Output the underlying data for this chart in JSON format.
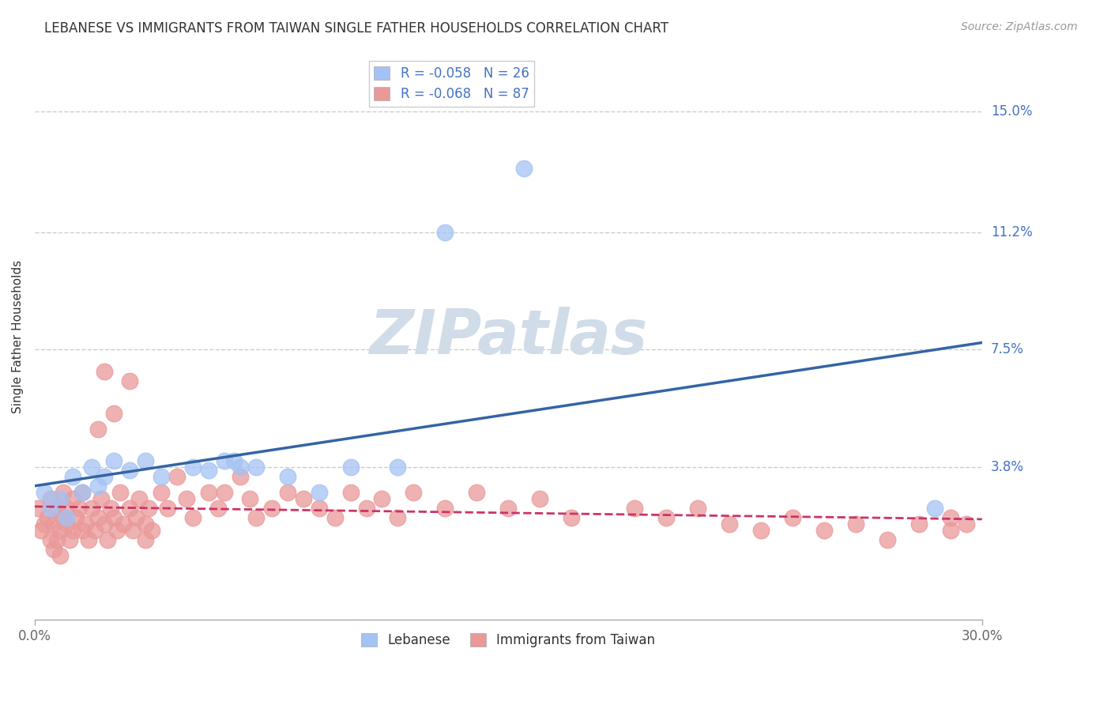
{
  "title": "LEBANESE VS IMMIGRANTS FROM TAIWAN SINGLE FATHER HOUSEHOLDS CORRELATION CHART",
  "source": "Source: ZipAtlas.com",
  "ylabel": "Single Father Households",
  "ytick_labels": [
    "15.0%",
    "11.2%",
    "7.5%",
    "3.8%"
  ],
  "ytick_values": [
    0.15,
    0.112,
    0.075,
    0.038
  ],
  "xlim": [
    0.0,
    0.3
  ],
  "ylim": [
    -0.01,
    0.168
  ],
  "legend_entry1": "R = -0.058   N = 26",
  "legend_entry2": "R = -0.068   N = 87",
  "legend_label1": "Lebanese",
  "legend_label2": "Immigrants from Taiwan",
  "blue_color": "#a4c2f4",
  "pink_color": "#ea9999",
  "blue_line_color": "#3465a4",
  "pink_line_color": "#cc3366",
  "grid_color": "#cccccc",
  "watermark": "ZIPatlas",
  "watermark_color": "#d0dce8",
  "blue_scatter_x": [
    0.003,
    0.005,
    0.008,
    0.01,
    0.012,
    0.015,
    0.018,
    0.02,
    0.022,
    0.025,
    0.03,
    0.035,
    0.04,
    0.05,
    0.055,
    0.06,
    0.063,
    0.065,
    0.07,
    0.08,
    0.09,
    0.1,
    0.115,
    0.13,
    0.155,
    0.285
  ],
  "blue_scatter_y": [
    0.03,
    0.025,
    0.028,
    0.022,
    0.035,
    0.03,
    0.038,
    0.032,
    0.035,
    0.04,
    0.037,
    0.04,
    0.035,
    0.038,
    0.037,
    0.04,
    0.04,
    0.038,
    0.038,
    0.035,
    0.03,
    0.038,
    0.038,
    0.112,
    0.132,
    0.025
  ],
  "pink_scatter_x": [
    0.001,
    0.002,
    0.003,
    0.004,
    0.005,
    0.005,
    0.006,
    0.006,
    0.007,
    0.007,
    0.008,
    0.008,
    0.009,
    0.009,
    0.01,
    0.01,
    0.011,
    0.012,
    0.012,
    0.013,
    0.014,
    0.015,
    0.015,
    0.016,
    0.017,
    0.018,
    0.019,
    0.02,
    0.021,
    0.022,
    0.023,
    0.024,
    0.025,
    0.026,
    0.027,
    0.028,
    0.03,
    0.031,
    0.032,
    0.033,
    0.035,
    0.035,
    0.036,
    0.037,
    0.04,
    0.042,
    0.045,
    0.048,
    0.05,
    0.055,
    0.058,
    0.06,
    0.065,
    0.068,
    0.07,
    0.075,
    0.08,
    0.085,
    0.09,
    0.095,
    0.1,
    0.105,
    0.11,
    0.115,
    0.12,
    0.13,
    0.14,
    0.15,
    0.16,
    0.17,
    0.19,
    0.2,
    0.21,
    0.22,
    0.23,
    0.24,
    0.25,
    0.26,
    0.27,
    0.28,
    0.29,
    0.29,
    0.295,
    0.025,
    0.03,
    0.02,
    0.022
  ],
  "pink_scatter_y": [
    0.025,
    0.018,
    0.02,
    0.022,
    0.015,
    0.028,
    0.012,
    0.02,
    0.015,
    0.025,
    0.018,
    0.01,
    0.022,
    0.03,
    0.02,
    0.025,
    0.015,
    0.018,
    0.028,
    0.022,
    0.025,
    0.018,
    0.03,
    0.02,
    0.015,
    0.025,
    0.018,
    0.022,
    0.028,
    0.02,
    0.015,
    0.025,
    0.022,
    0.018,
    0.03,
    0.02,
    0.025,
    0.018,
    0.022,
    0.028,
    0.02,
    0.015,
    0.025,
    0.018,
    0.03,
    0.025,
    0.035,
    0.028,
    0.022,
    0.03,
    0.025,
    0.03,
    0.035,
    0.028,
    0.022,
    0.025,
    0.03,
    0.028,
    0.025,
    0.022,
    0.03,
    0.025,
    0.028,
    0.022,
    0.03,
    0.025,
    0.03,
    0.025,
    0.028,
    0.022,
    0.025,
    0.022,
    0.025,
    0.02,
    0.018,
    0.022,
    0.018,
    0.02,
    0.015,
    0.02,
    0.018,
    0.022,
    0.02,
    0.055,
    0.065,
    0.05,
    0.068
  ]
}
